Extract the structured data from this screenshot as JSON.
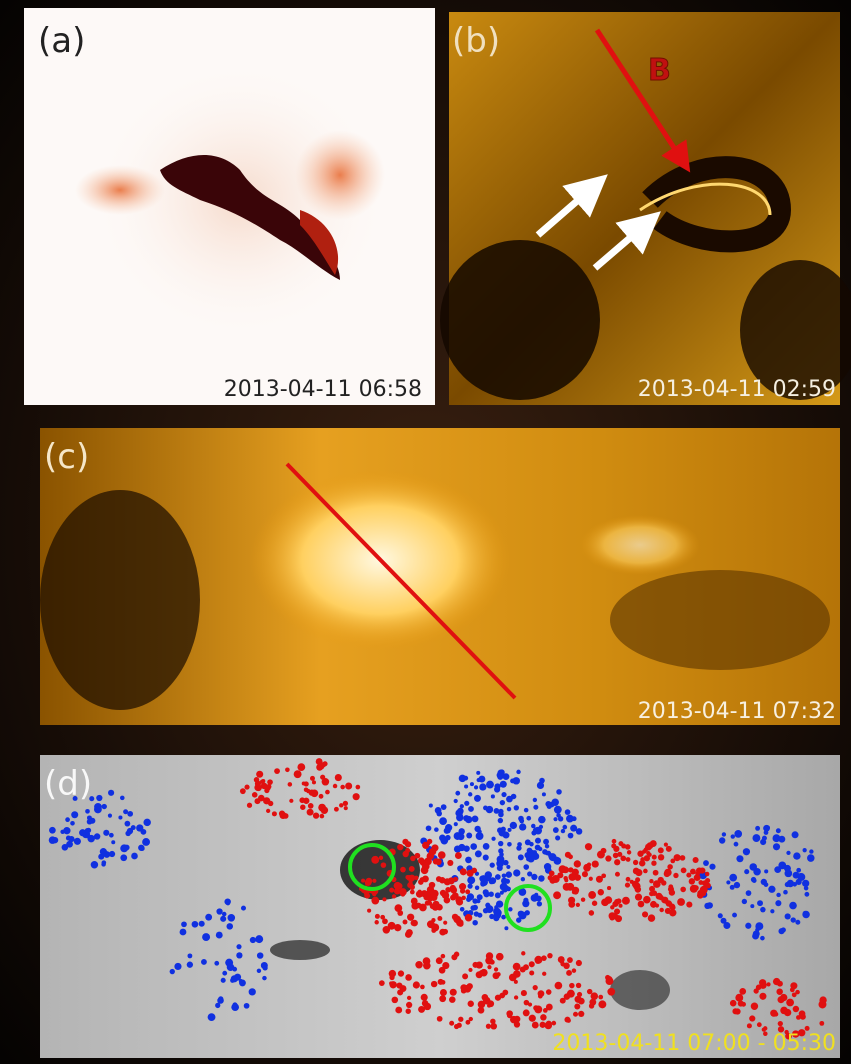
{
  "panels": [
    {
      "label": "(a)",
      "timestamp": "2013-04-11 06:58"
    },
    {
      "label": "(b)",
      "timestamp": "2013-04-11 02:59",
      "annotation": "B"
    },
    {
      "label": "(c)",
      "timestamp": "2013-04-11 07:32"
    },
    {
      "label": "(d)",
      "timestamp": "2013-04-11 07:00 - 05:30"
    }
  ]
}
